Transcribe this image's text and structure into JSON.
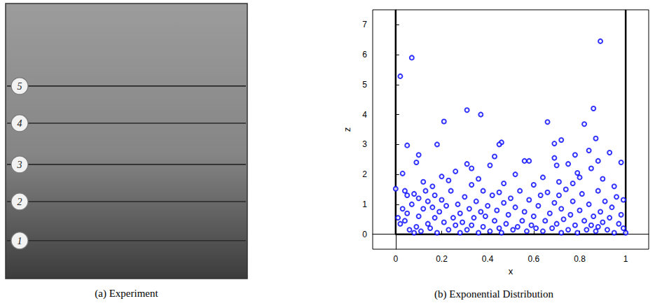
{
  "panel_a": {
    "caption": "(a) Experiment",
    "line_labels": [
      "5",
      "4",
      "3",
      "2",
      "1"
    ]
  },
  "chart_data": {
    "type": "scatter",
    "caption": "(b) Exponential Distribution",
    "x_label": "x",
    "y_label": "z",
    "marker": "o",
    "color": "#0000ff",
    "grid": false,
    "x": [
      0.02,
      0.07,
      0.89,
      0.31,
      0.37,
      0.86,
      0.82,
      0.21,
      0.66,
      0.46,
      0.45,
      0.18,
      0.05,
      0.72,
      0.69,
      0.87,
      0.93,
      0.98,
      0.1,
      0.09,
      0.03,
      0.31,
      0.33,
      0.43,
      0.41,
      0.56,
      0.58,
      0.26,
      0.2,
      0.69,
      0.7,
      0.75,
      0.78,
      0.79,
      0.85,
      0.88,
      0.84,
      0.77,
      0.12,
      0.16,
      0.23,
      0.36,
      0.47,
      0.52,
      0.6,
      0.64,
      0.71,
      0.8,
      0.9,
      0.95,
      0,
      0.01,
      0.02,
      0.03,
      0.04,
      0.04,
      0.05,
      0.05,
      0.06,
      0.07,
      0.08,
      0.08,
      0.09,
      0.1,
      0.1,
      0.11,
      0.12,
      0.13,
      0.14,
      0.14,
      0.15,
      0.16,
      0.17,
      0.17,
      0.18,
      0.19,
      0.2,
      0.21,
      0.22,
      0.23,
      0.24,
      0.25,
      0.26,
      0.27,
      0.28,
      0.28,
      0.29,
      0.3,
      0.31,
      0.32,
      0.33,
      0.33,
      0.34,
      0.35,
      0.36,
      0.37,
      0.38,
      0.38,
      0.39,
      0.4,
      0.41,
      0.42,
      0.43,
      0.44,
      0.45,
      0.45,
      0.46,
      0.47,
      0.48,
      0.49,
      0.5,
      0.51,
      0.52,
      0.53,
      0.54,
      0.55,
      0.56,
      0.57,
      0.58,
      0.59,
      0.6,
      0.61,
      0.62,
      0.63,
      0.64,
      0.65,
      0.66,
      0.67,
      0.68,
      0.69,
      0.7,
      0.71,
      0.72,
      0.72,
      0.73,
      0.74,
      0.75,
      0.76,
      0.77,
      0.78,
      0.79,
      0.8,
      0.81,
      0.82,
      0.83,
      0.84,
      0.85,
      0.86,
      0.87,
      0.88,
      0.88,
      0.89,
      0.9,
      0.91,
      0.92,
      0.93,
      0.94,
      0.95,
      0.96,
      0.97,
      0.98,
      0.99,
      0.99,
      1
    ],
    "values": [
      5.28,
      5.9,
      6.45,
      4.15,
      4.0,
      4.2,
      3.68,
      3.77,
      3.75,
      3.07,
      3.0,
      3.0,
      2.97,
      3.15,
      3.03,
      3.2,
      2.73,
      2.4,
      2.65,
      2.4,
      2.03,
      2.35,
      2.2,
      2.6,
      2.3,
      2.45,
      2.45,
      2.1,
      1.93,
      2.55,
      2.3,
      2.35,
      2.65,
      2.05,
      2.2,
      2.45,
      2.8,
      1.7,
      1.75,
      1.6,
      1.8,
      1.85,
      1.7,
      2.0,
      1.65,
      1.9,
      1.75,
      1.9,
      1.85,
      1.6,
      1.52,
      0.55,
      0.35,
      0.85,
      1.45,
      0.45,
      1.3,
      0.7,
      0.15,
      1.0,
      0.05,
      1.35,
      0.25,
      0.6,
      1.2,
      0.1,
      0.85,
      1.45,
      0.35,
      1.1,
      0.2,
      0.9,
      0.55,
      1.3,
      0.05,
      0.75,
      1.15,
      0.4,
      0.95,
      0.15,
      1.45,
      0.55,
      0.3,
      1.0,
      0.05,
      0.7,
      0.4,
      1.25,
      0.15,
      0.85,
      1.65,
      0.3,
      0.55,
      1.1,
      0.05,
      0.75,
      1.45,
      0.25,
      0.6,
      0.95,
      0.1,
      1.3,
      0.45,
      0.8,
      1.4,
      0.2,
      0.05,
      1.05,
      0.35,
      0.65,
      1.2,
      0.15,
      0.9,
      0.25,
      1.45,
      0.45,
      0.75,
      0.1,
      1.15,
      0.3,
      0.6,
      0.2,
      0.95,
      1.3,
      0.1,
      0.45,
      1.4,
      0.7,
      0.2,
      1.05,
      0.35,
      1.3,
      0.05,
      0.85,
      0.5,
      1.5,
      0.15,
      0.65,
      1.1,
      0.3,
      0.05,
      0.8,
      1.35,
      0.45,
      0.15,
      1.0,
      0.3,
      0.6,
      0.1,
      1.45,
      0.25,
      0.75,
      0.4,
      1.1,
      0.15,
      0.55,
      0.9,
      0.05,
      1.25,
      0.35,
      0.65,
      1.15,
      0.2,
      0.05
    ],
    "boundary": {
      "x": [
        0,
        0,
        1,
        1
      ],
      "values": [
        7.5,
        0,
        0,
        7.5
      ]
    },
    "xlim": [
      -0.1,
      1.1
    ],
    "ylim": [
      -0.5,
      7.5
    ],
    "xticks": [
      0,
      0.2,
      0.4,
      0.6,
      0.8,
      1
    ],
    "yticks": [
      0,
      1,
      2,
      3,
      4,
      5,
      6,
      7
    ]
  }
}
